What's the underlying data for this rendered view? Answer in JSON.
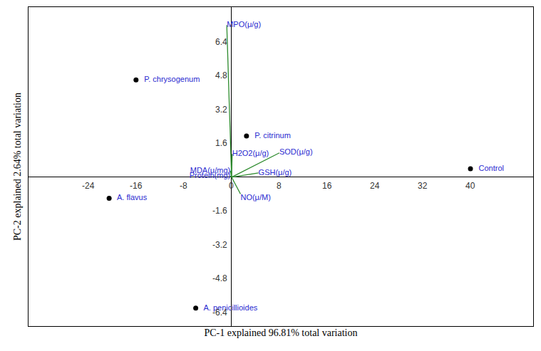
{
  "chart_data": {
    "type": "biplot",
    "x_label": "PC-1 explained 96.81% total variation",
    "y_label": "PC-2 explained 2.64% total variation",
    "xlim": [
      -34,
      50.5
    ],
    "ylim": [
      -7.05,
      8.05
    ],
    "xticks": [
      -24,
      -16,
      -8,
      0,
      8,
      16,
      24,
      32,
      40
    ],
    "yticks": [
      -6.4,
      -4.8,
      -3.2,
      -1.6,
      1.6,
      3.2,
      4.8,
      6.4
    ],
    "grid": false,
    "points": {
      "labels": [
        "P. chrysogenum",
        "P. citrinum",
        "Control",
        "A. flavus",
        "A. penicillioides"
      ],
      "x": [
        -16,
        2.5,
        40,
        -20.5,
        -6
      ],
      "y": [
        4.6,
        1.95,
        0.4,
        -1.0,
        -6.2
      ],
      "color": "#000000",
      "marker": "circle"
    },
    "loadings": {
      "labels": [
        "MPO(μ/g)",
        "H2O2(μ/g)",
        "SOD(μ/g)",
        "GSH(μ/g)",
        "MDA(μ/mg)",
        "Protein(mg)",
        "NO(μ/M)"
      ],
      "x": [
        -0.8,
        0.1,
        8.0,
        4.5,
        -0.2,
        -0.2,
        1.5
      ],
      "y": [
        7.2,
        1.1,
        1.15,
        0.2,
        0.3,
        0.05,
        -0.8
      ],
      "color": "#2e8b2e",
      "line_style": "solid"
    }
  }
}
